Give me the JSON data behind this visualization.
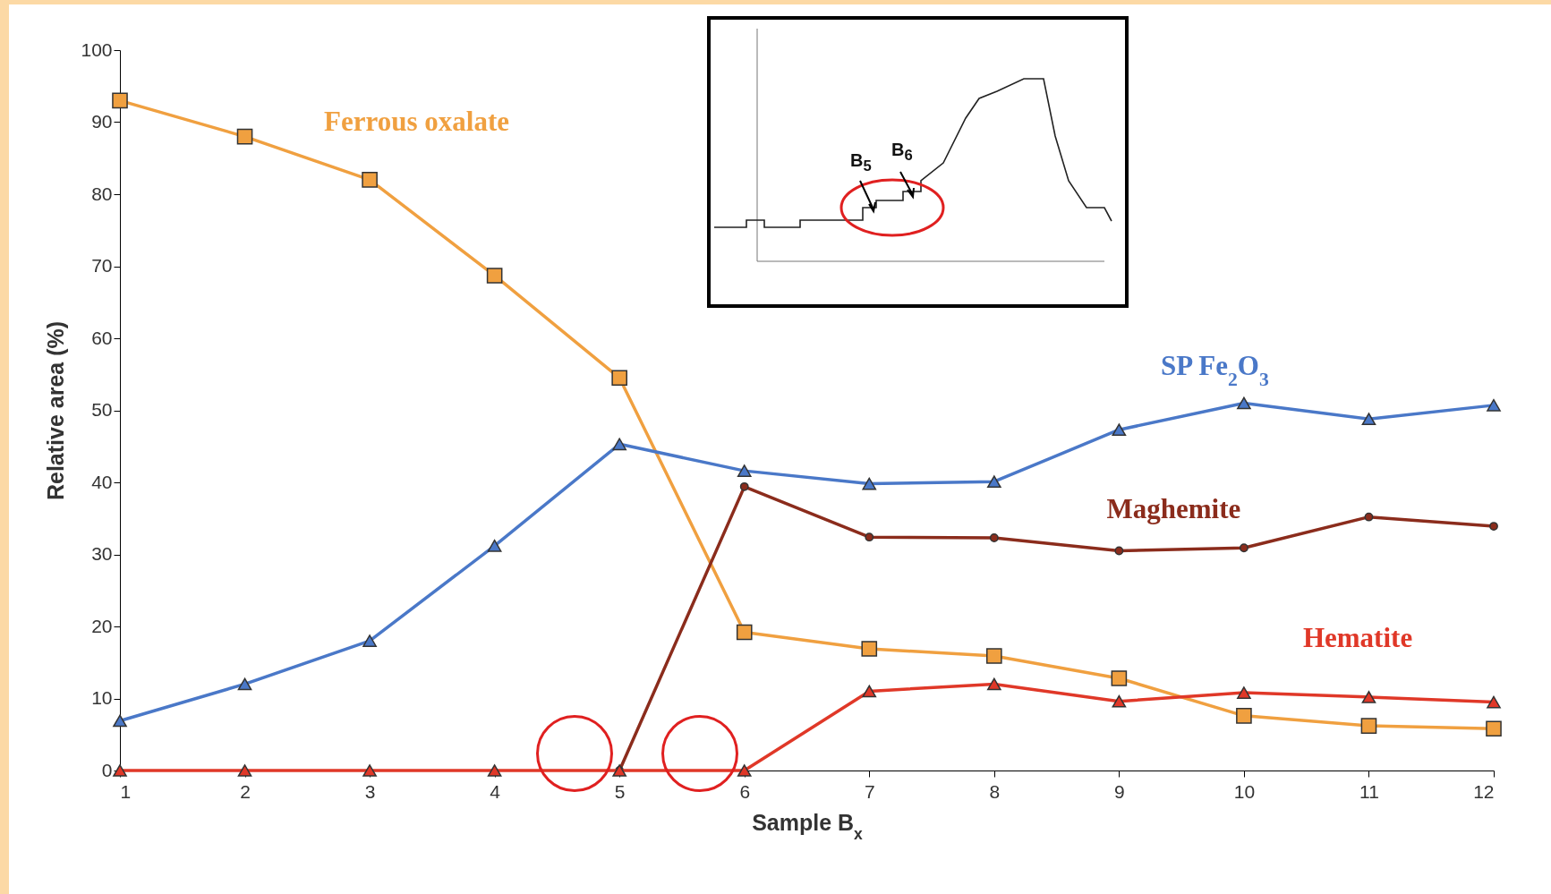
{
  "chart_data": {
    "type": "line",
    "xlabel": "Sample B$_{x}$",
    "ylabel": "Relative area (%)",
    "x": [
      1,
      2,
      3,
      4,
      5,
      6,
      7,
      8,
      9,
      10,
      11,
      12
    ],
    "xlim": [
      1,
      12
    ],
    "xticks": [
      1,
      2,
      3,
      4,
      5,
      6,
      7,
      8,
      9,
      10,
      11,
      12
    ],
    "ylim": [
      0,
      100
    ],
    "yticks": [
      0,
      10,
      20,
      30,
      40,
      50,
      60,
      70,
      80,
      90,
      100
    ],
    "grid": false,
    "legend": false,
    "series": [
      {
        "name": "Ferrous oxalate",
        "color": "#f0a040",
        "marker": "square",
        "values": [
          93,
          88,
          82,
          68.7,
          54.5,
          19.2,
          16.9,
          15.9,
          12.8,
          7.6,
          6.2,
          5.8
        ]
      },
      {
        "name": "SP Fe$_{2}$O$_{3}$",
        "color": "#4a78c8",
        "marker": "triangle",
        "values": [
          6.9,
          12,
          18,
          31.2,
          45.3,
          41.6,
          39.8,
          40.1,
          47.3,
          51,
          48.8,
          50.7
        ]
      },
      {
        "name": "Maghemite",
        "color": "#8b2c1c",
        "marker": "circle",
        "values": [
          null,
          null,
          null,
          null,
          0,
          39.4,
          32.4,
          32.3,
          30.5,
          30.9,
          35.2,
          33.9
        ]
      },
      {
        "name": "Hematite",
        "color": "#e03828",
        "marker": "triangle",
        "values": [
          0,
          0,
          0,
          0,
          0,
          0,
          11,
          12,
          9.6,
          10.8,
          10.2,
          9.5
        ]
      }
    ],
    "annotations": [
      "B$_{5}$",
      "B$_{6}$"
    ]
  }
}
